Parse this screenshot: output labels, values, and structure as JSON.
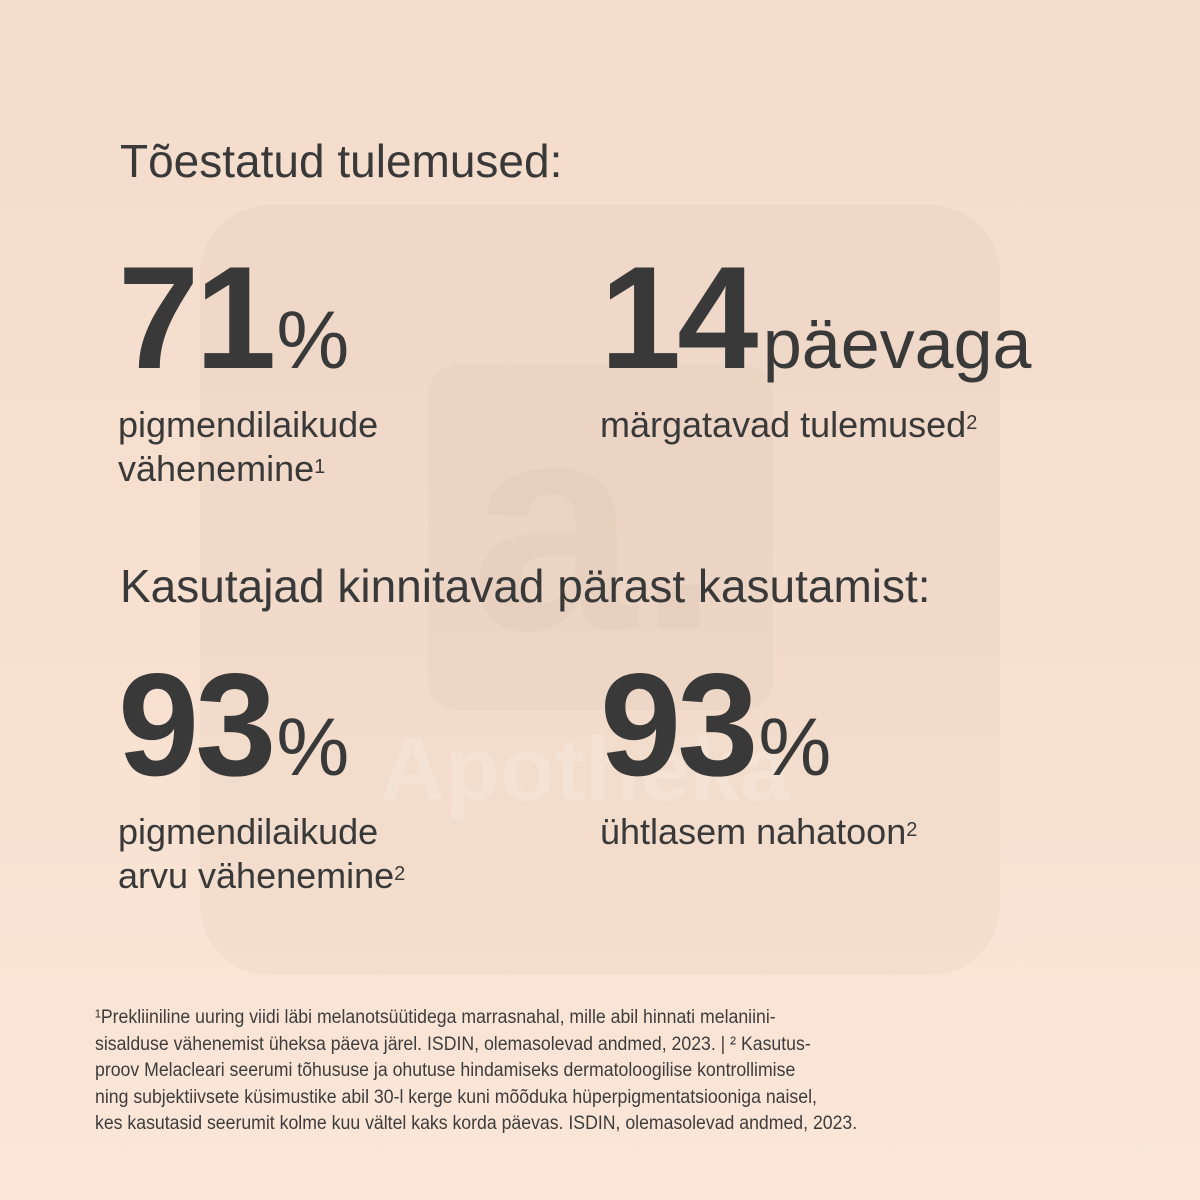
{
  "watermark": {
    "logo_letter": "a.",
    "brand": "Apotheka"
  },
  "section1": {
    "heading": "Tõestatud tulemused:"
  },
  "stats1": [
    {
      "value": "71",
      "unit": "%",
      "desc_lines": [
        "pigmendilaikude",
        "vähenemine"
      ],
      "footnote": "1"
    },
    {
      "value": "14",
      "unit": "päevaga",
      "desc_lines": [
        "märgatavad tulemused"
      ],
      "footnote": "2"
    }
  ],
  "section2": {
    "heading": "Kasutajad kinnitavad pärast kasutamist:"
  },
  "stats2": [
    {
      "value": "93",
      "unit": "%",
      "desc_lines": [
        "pigmendilaikude",
        "arvu vähenemine"
      ],
      "footnote": "2"
    },
    {
      "value": "93",
      "unit": "%",
      "desc_lines": [
        "ühtlasem nahatoon"
      ],
      "footnote": "2"
    }
  ],
  "footnotes": {
    "lines": [
      "¹Prekliiniline uuring viidi läbi melanotsüütidega marrasnahal, mille abil hinnati melaniini-",
      "sisalduse vähenemist üheksa päeva järel. ISDIN, olemasolevad andmed, 2023. | ² Kasutus-",
      "proov Melacleari seerumi tõhususe ja ohutuse hindamiseks dermatoloogilise kontrollimise",
      "ning subjektiivsete küsimustike abil 30-l kerge kuni mõõduka hüperpigmentatsiooniga naisel,",
      "kes kasutasid seerumit kolme kuu vältel kaks korda päevas. ISDIN, olemasolevad andmed, 2023."
    ]
  }
}
